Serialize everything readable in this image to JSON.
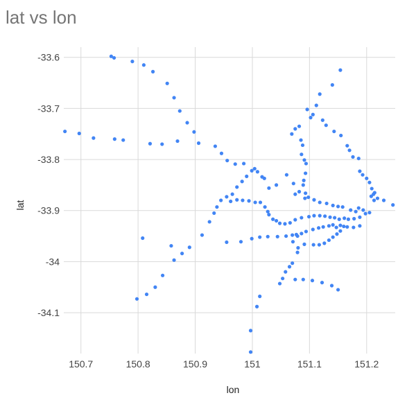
{
  "chart_data": {
    "type": "scatter",
    "title": "lat vs lon",
    "xlabel": "lon",
    "ylabel": "lat",
    "xlim": [
      150.67,
      151.25
    ],
    "ylim": [
      -34.18,
      -33.58
    ],
    "xticks": [
      150.7,
      150.8,
      150.9,
      151,
      151.1,
      151.2
    ],
    "xtick_labels": [
      "150.7",
      "150.8",
      "150.9",
      "151",
      "151.1",
      "151.2"
    ],
    "yticks": [
      -33.6,
      -33.7,
      -33.8,
      -33.9,
      -34,
      -34.1
    ],
    "ytick_labels": [
      "-33.6",
      "-33.7",
      "-33.8",
      "-33.9",
      "-34",
      "-34.1"
    ],
    "grid": true,
    "point_color": "#4285f4",
    "series": [
      {
        "points": [
          [
            150.672,
            -33.745
          ],
          [
            150.697,
            -33.749
          ],
          [
            150.722,
            -33.758
          ],
          [
            150.753,
            -33.598
          ],
          [
            150.758,
            -33.601
          ],
          [
            150.759,
            -33.76
          ],
          [
            150.774,
            -33.762
          ],
          [
            150.79,
            -33.608
          ],
          [
            150.81,
            -33.615
          ],
          [
            150.821,
            -33.769
          ],
          [
            150.826,
            -33.628
          ],
          [
            150.842,
            -33.77
          ],
          [
            150.851,
            -33.651
          ],
          [
            150.863,
            -33.679
          ],
          [
            150.869,
            -33.764
          ],
          [
            150.873,
            -33.705
          ],
          [
            150.886,
            -33.728
          ],
          [
            150.898,
            -33.746
          ],
          [
            150.906,
            -33.768
          ],
          [
            150.935,
            -33.774
          ],
          [
            150.946,
            -33.788
          ],
          [
            150.956,
            -33.802
          ],
          [
            150.97,
            -33.809
          ],
          [
            150.985,
            -33.808
          ],
          [
            151.004,
            -33.818
          ],
          [
            151.009,
            -33.824
          ],
          [
            151.017,
            -33.834
          ],
          [
            151.021,
            -33.837
          ],
          [
            151.029,
            -33.856
          ],
          [
            151.042,
            -33.85
          ],
          [
            151.06,
            -33.83
          ],
          [
            151.069,
            -33.75
          ],
          [
            151.075,
            -33.74
          ],
          [
            151.082,
            -33.735
          ],
          [
            151.085,
            -33.762
          ],
          [
            151.088,
            -33.772
          ],
          [
            151.096,
            -33.702
          ],
          [
            151.102,
            -33.718
          ],
          [
            151.106,
            -33.712
          ],
          [
            151.112,
            -33.694
          ],
          [
            151.118,
            -33.672
          ],
          [
            151.123,
            -33.723
          ],
          [
            151.129,
            -33.733
          ],
          [
            151.14,
            -33.654
          ],
          [
            151.143,
            -33.745
          ],
          [
            151.154,
            -33.625
          ],
          [
            151.155,
            -33.753
          ],
          [
            151.166,
            -33.773
          ],
          [
            151.17,
            -33.782
          ],
          [
            151.176,
            -33.795
          ],
          [
            151.186,
            -33.798
          ],
          [
            151.188,
            -33.823
          ],
          [
            151.193,
            -33.83
          ],
          [
            151.2,
            -33.837
          ],
          [
            151.205,
            -33.845
          ],
          [
            151.209,
            -33.857
          ],
          [
            151.214,
            -33.865
          ],
          [
            151.213,
            -33.88
          ],
          [
            151.219,
            -33.876
          ],
          [
            151.23,
            -33.88
          ],
          [
            151.246,
            -33.889
          ],
          [
            151.212,
            -33.868
          ],
          [
            151.208,
            -33.872
          ],
          [
            151.086,
            -33.79
          ],
          [
            151.091,
            -33.801
          ],
          [
            151.094,
            -33.808
          ],
          [
            151.093,
            -33.827
          ],
          [
            151.09,
            -33.841
          ],
          [
            151.089,
            -33.85
          ],
          [
            151.093,
            -33.866
          ],
          [
            151.092,
            -33.876
          ],
          [
            151.072,
            -33.847
          ],
          [
            151.075,
            -33.868
          ],
          [
            151.082,
            -33.863
          ],
          [
            151.098,
            -33.874
          ],
          [
            151.108,
            -33.879
          ],
          [
            151.118,
            -33.884
          ],
          [
            151.13,
            -33.886
          ],
          [
            151.141,
            -33.89
          ],
          [
            151.15,
            -33.892
          ],
          [
            151.158,
            -33.893
          ],
          [
            151.172,
            -33.899
          ],
          [
            151.181,
            -33.902
          ],
          [
            151.194,
            -33.899
          ],
          [
            151.205,
            -33.904
          ],
          [
            151.186,
            -33.895
          ],
          [
            150.912,
            -33.948
          ],
          [
            150.925,
            -33.922
          ],
          [
            150.933,
            -33.905
          ],
          [
            150.938,
            -33.893
          ],
          [
            150.945,
            -33.88
          ],
          [
            150.955,
            -33.873
          ],
          [
            150.965,
            -33.868
          ],
          [
            150.973,
            -33.854
          ],
          [
            150.982,
            -33.843
          ],
          [
            150.99,
            -33.833
          ],
          [
            150.999,
            -33.822
          ],
          [
            150.962,
            -33.882
          ],
          [
            150.973,
            -33.879
          ],
          [
            150.983,
            -33.88
          ],
          [
            150.994,
            -33.881
          ],
          [
            151.005,
            -33.884
          ],
          [
            151.014,
            -33.884
          ],
          [
            151.022,
            -33.893
          ],
          [
            151.027,
            -33.902
          ],
          [
            151.029,
            -33.908
          ],
          [
            151.036,
            -33.917
          ],
          [
            151.042,
            -33.92
          ],
          [
            151.048,
            -33.925
          ],
          [
            151.057,
            -33.926
          ],
          [
            151.066,
            -33.924
          ],
          [
            151.075,
            -33.918
          ],
          [
            151.086,
            -33.914
          ],
          [
            151.099,
            -33.912
          ],
          [
            151.108,
            -33.91
          ],
          [
            151.118,
            -33.91
          ],
          [
            151.127,
            -33.911
          ],
          [
            151.136,
            -33.913
          ],
          [
            151.144,
            -33.914
          ],
          [
            151.152,
            -33.917
          ],
          [
            151.161,
            -33.915
          ],
          [
            151.168,
            -33.917
          ],
          [
            151.178,
            -33.916
          ],
          [
            151.188,
            -33.913
          ],
          [
            151.198,
            -33.906
          ],
          [
            150.955,
            -33.962
          ],
          [
            150.98,
            -33.961
          ],
          [
            150.999,
            -33.955
          ],
          [
            151.013,
            -33.952
          ],
          [
            151.027,
            -33.951
          ],
          [
            151.044,
            -33.951
          ],
          [
            151.059,
            -33.95
          ],
          [
            151.07,
            -33.948
          ],
          [
            151.077,
            -33.947
          ],
          [
            151.079,
            -33.95
          ],
          [
            151.086,
            -33.945
          ],
          [
            151.094,
            -33.941
          ],
          [
            151.106,
            -33.937
          ],
          [
            151.116,
            -33.934
          ],
          [
            151.124,
            -33.932
          ],
          [
            151.134,
            -33.93
          ],
          [
            151.141,
            -33.928
          ],
          [
            151.147,
            -33.933
          ],
          [
            151.154,
            -33.929
          ],
          [
            151.166,
            -33.932
          ],
          [
            151.177,
            -33.933
          ],
          [
            151.188,
            -33.93
          ],
          [
            151.071,
            -33.961
          ],
          [
            151.08,
            -33.973
          ],
          [
            151.079,
            -33.982
          ],
          [
            151.091,
            -33.966
          ],
          [
            151.107,
            -33.967
          ],
          [
            151.117,
            -33.967
          ],
          [
            151.126,
            -33.964
          ],
          [
            151.134,
            -33.958
          ],
          [
            151.141,
            -33.952
          ],
          [
            151.148,
            -33.946
          ],
          [
            151.154,
            -33.94
          ],
          [
            151.16,
            -33.931
          ],
          [
            150.798,
            -34.073
          ],
          [
            150.808,
            -33.954
          ],
          [
            150.815,
            -34.064
          ],
          [
            150.83,
            -34.05
          ],
          [
            150.843,
            -34.027
          ],
          [
            150.858,
            -33.969
          ],
          [
            150.863,
            -33.997
          ],
          [
            150.877,
            -33.984
          ],
          [
            150.89,
            -33.972
          ],
          [
            151.048,
            -34.043
          ],
          [
            151.053,
            -34.033
          ],
          [
            151.058,
            -34.02
          ],
          [
            151.065,
            -34.01
          ],
          [
            151.07,
            -34.003
          ],
          [
            151.075,
            -34.035
          ],
          [
            151.089,
            -34.035
          ],
          [
            151.105,
            -34.037
          ],
          [
            151.122,
            -34.041
          ],
          [
            151.139,
            -34.047
          ],
          [
            151.15,
            -34.055
          ],
          [
            151.008,
            -34.088
          ],
          [
            151.013,
            -34.068
          ],
          [
            150.997,
            -34.135
          ],
          [
            150.997,
            -34.177
          ]
        ]
      }
    ]
  }
}
